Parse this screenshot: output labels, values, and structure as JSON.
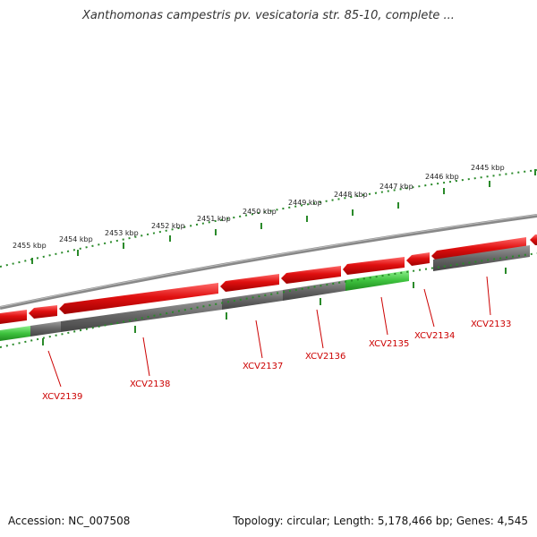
{
  "title": "Xanthomonas campestris pv. vesicatoria str. 85-10, complete ...",
  "scale_labels": [
    "2455 kbp",
    "2454 kbp",
    "2453 kbp",
    "2452 kbp",
    "2451 kbp",
    "2450 kbp",
    "2449 kbp",
    "2448 kbp",
    "2447 kbp",
    "2446 kbp",
    "2445 kbp"
  ],
  "gene_labels": [
    "XCV2139",
    "XCV2138",
    "XCV2137",
    "XCV2136",
    "XCV2135",
    "XCV2134",
    "XCV2133"
  ],
  "colors": {
    "forward_gene": "#e01010",
    "gene_track": "#6b6b6b",
    "highlight_gene": "#3ec23e",
    "scale_ticks": "#2a8a2a",
    "backbone": "#888888",
    "label": "#cc0000"
  },
  "footer": {
    "accession": "Accession: NC_007508",
    "summary": "Topology: circular; Length: 5,178,466 bp; Genes: 4,545"
  }
}
